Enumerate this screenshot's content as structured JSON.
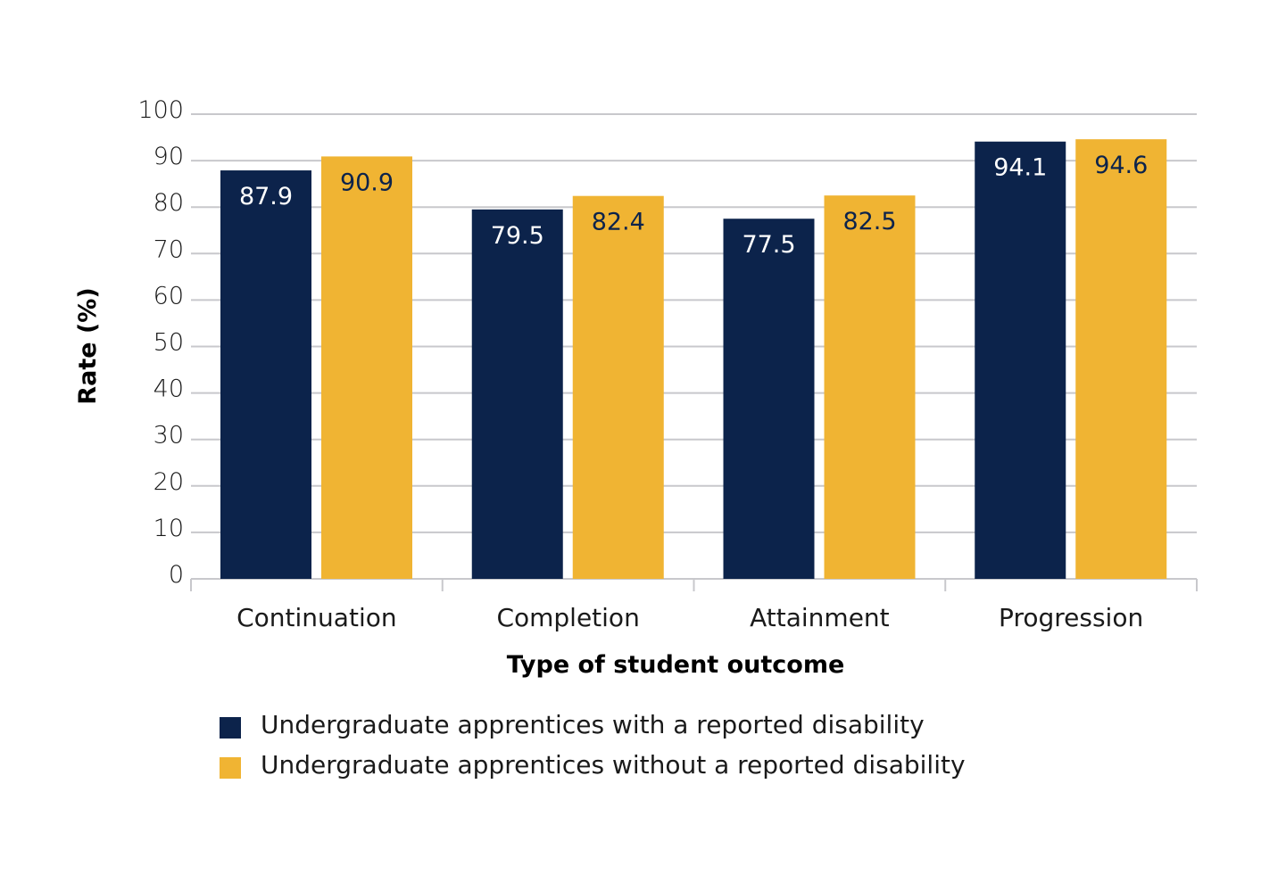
{
  "chart_data": {
    "type": "bar",
    "title": "",
    "xlabel": "Type of student outcome",
    "ylabel": "Rate (%)",
    "ylim": [
      0,
      100
    ],
    "yticks": [
      0,
      10,
      20,
      30,
      40,
      50,
      60,
      70,
      80,
      90,
      100
    ],
    "grid": true,
    "legend_position": "bottom",
    "categories": [
      "Continuation",
      "Completion",
      "Attainment",
      "Progression"
    ],
    "series": [
      {
        "name": "Undergraduate apprentices with a reported disability",
        "color": "#0c234b",
        "label_color": "#ffffff",
        "values": [
          87.9,
          79.5,
          77.5,
          94.1
        ]
      },
      {
        "name": "Undergraduate apprentices without a reported disability",
        "color": "#f0b433",
        "label_color": "#0c234b",
        "values": [
          90.9,
          82.4,
          82.5,
          94.6
        ]
      }
    ]
  }
}
